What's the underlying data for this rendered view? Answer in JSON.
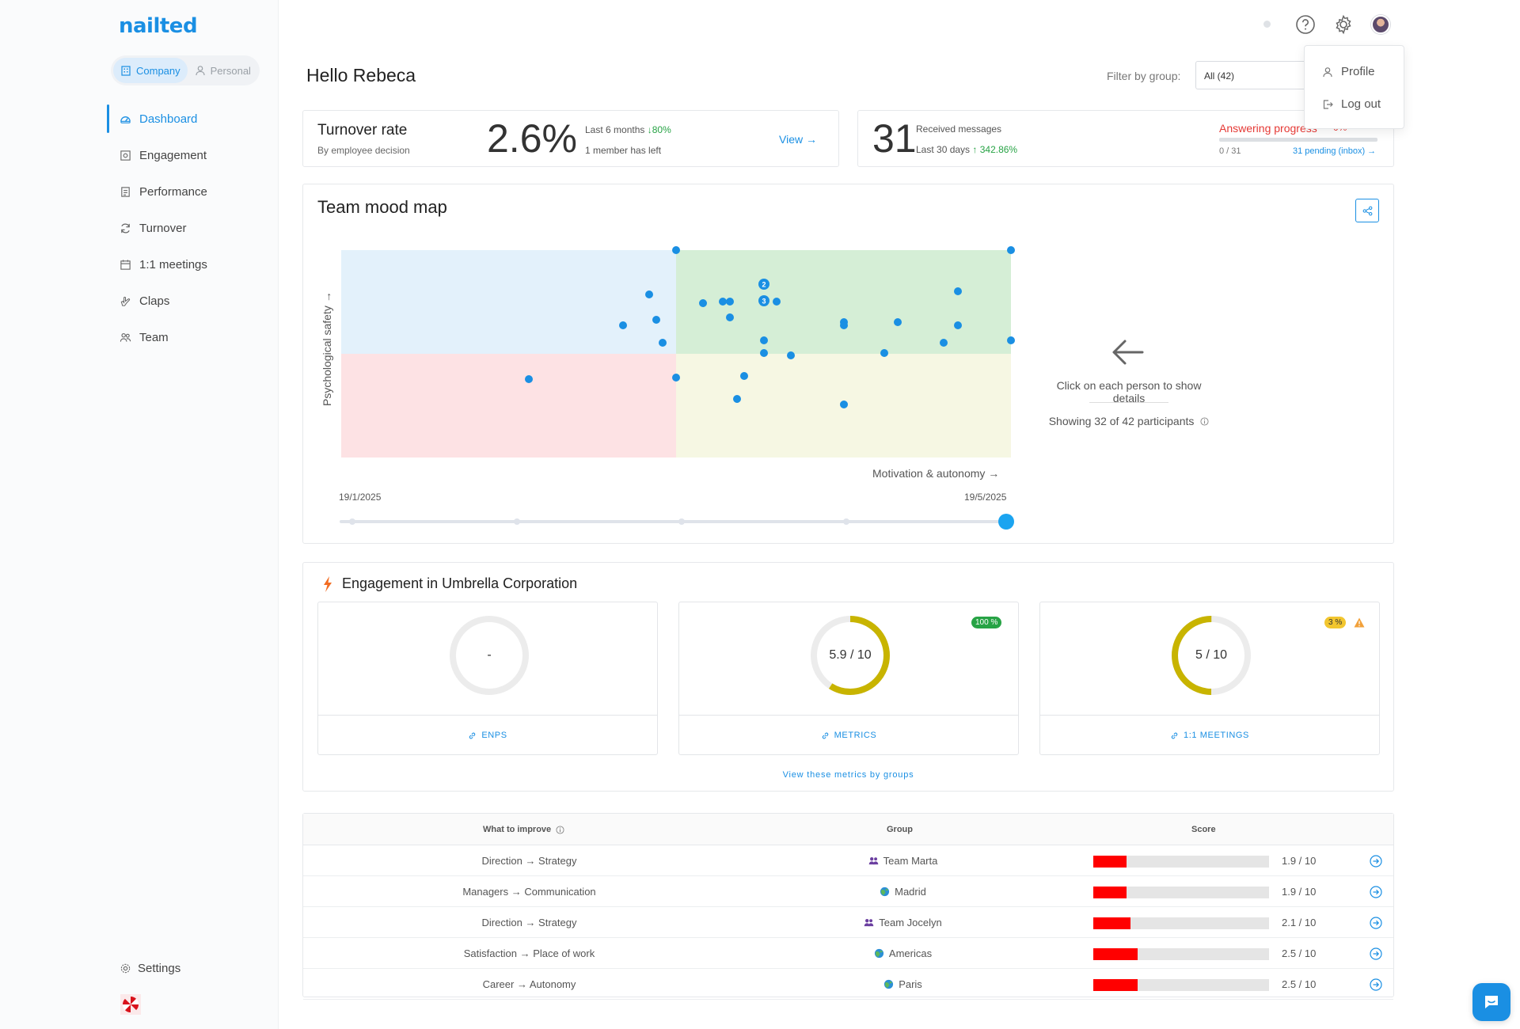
{
  "app": {
    "logo": "nailted"
  },
  "sidebar": {
    "switch": {
      "company": "Company",
      "personal": "Personal"
    },
    "items": [
      {
        "label": "Dashboard",
        "icon": "dashboard-icon",
        "active": true
      },
      {
        "label": "Engagement",
        "icon": "engagement-icon"
      },
      {
        "label": "Performance",
        "icon": "performance-icon"
      },
      {
        "label": "Turnover",
        "icon": "turnover-icon"
      },
      {
        "label": "1:1 meetings",
        "icon": "calendar-icon"
      },
      {
        "label": "Claps",
        "icon": "claps-icon"
      },
      {
        "label": "Team",
        "icon": "team-icon"
      }
    ],
    "settings": "Settings"
  },
  "menu": {
    "profile": "Profile",
    "logout": "Log out"
  },
  "header": {
    "greeting": "Hello Rebeca",
    "filter_label": "Filter by group:",
    "filter_value": "All (42)"
  },
  "turnover": {
    "title": "Turnover rate",
    "subtitle": "By employee decision",
    "value": "2.6%",
    "period": "Last 6 months",
    "change": "↓80%",
    "detail": "1 member has left",
    "view": "View →"
  },
  "messages": {
    "value": "31",
    "label": "Received messages",
    "period": "Last 30 days",
    "change": "↑ 342.86%",
    "progress_label": "Answering progress",
    "progress_pct": "0%",
    "progress_count": "0 / 31",
    "pending": "31 pending (inbox) →"
  },
  "mood_map": {
    "title": "Team mood map",
    "ylabel": "Psychological safety →",
    "xlabel": "Motivation & autonomy →",
    "date_start": "19/1/2025",
    "date_end": "19/5/2025",
    "hint": "Click on each person to show details",
    "showing": "Showing 32 of 42 participants",
    "colors": {
      "q_top_left": "#e3f1fb",
      "q_top_right": "#d5eed6",
      "q_bottom_left": "#fde2e4",
      "q_bottom_right": "#f6f7e3",
      "dot": "#1a8fe3"
    }
  },
  "engagement": {
    "title": "Engagement in Umbrella Corporation",
    "cards": [
      {
        "value": "-",
        "label": "ENPS",
        "score": 0
      },
      {
        "value": "5.9 / 10",
        "label": "METRICS",
        "score": 5.9,
        "badge": "100 %"
      },
      {
        "value": "5 / 10",
        "label": "1:1 MEETINGS",
        "score": 5,
        "badge": "3 %"
      }
    ],
    "ring_color": "#c8b400",
    "view_groups": "View these metrics by groups"
  },
  "improve": {
    "headers": {
      "what": "What to improve",
      "group": "Group",
      "score": "Score"
    },
    "rows": [
      {
        "what": "Direction → Strategy",
        "group": "Team Marta",
        "group_icon": "team-icon",
        "score": "1.9 / 10",
        "value": 1.9
      },
      {
        "what": "Managers → Communication",
        "group": "Madrid",
        "group_icon": "globe-icon",
        "score": "1.9 / 10",
        "value": 1.9
      },
      {
        "what": "Direction → Strategy",
        "group": "Team Jocelyn",
        "group_icon": "team-icon",
        "score": "2.1 / 10",
        "value": 2.1
      },
      {
        "what": "Satisfaction → Place of work",
        "group": "Americas",
        "group_icon": "globe-icon",
        "score": "2.5 / 10",
        "value": 2.5
      },
      {
        "what": "Career → Autonomy",
        "group": "Paris",
        "group_icon": "globe-icon",
        "score": "2.5 / 10",
        "value": 2.5
      }
    ]
  }
}
